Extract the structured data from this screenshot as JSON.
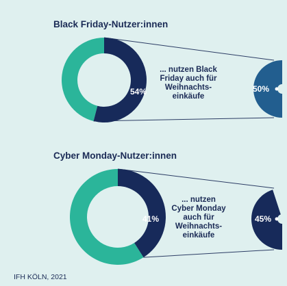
{
  "source": "IFH KÖLN, 2021",
  "colors": {
    "background": "#dff0ef",
    "teal": "#2bb59a",
    "navy": "#172a5a",
    "blue": "#225e8f"
  },
  "chart_data": [
    {
      "type": "pie",
      "title": "Black Friday-Nutzer:innen",
      "slice_label": "54%",
      "values": [
        54,
        46
      ],
      "description_lines": [
        "... nutzen Black",
        "Friday auch für",
        "Weihnachts-",
        "einkäufe"
      ],
      "detail": {
        "label": "50%",
        "value": 50
      }
    },
    {
      "type": "pie",
      "title": "Cyber Monday-Nutzer:innen",
      "slice_label": "41%",
      "values": [
        41,
        59
      ],
      "description_lines": [
        "... nutzen",
        "Cyber Monday",
        "auch für",
        "Weihnachts-",
        "einkäufe"
      ],
      "detail": {
        "label": "45%",
        "value": 45
      }
    }
  ]
}
